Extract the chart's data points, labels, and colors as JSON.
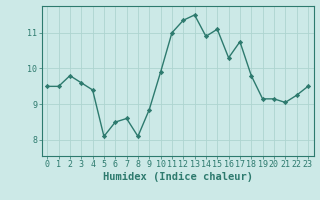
{
  "x": [
    0,
    1,
    2,
    3,
    4,
    5,
    6,
    7,
    8,
    9,
    10,
    11,
    12,
    13,
    14,
    15,
    16,
    17,
    18,
    19,
    20,
    21,
    22,
    23
  ],
  "y": [
    9.5,
    9.5,
    9.8,
    9.6,
    9.4,
    8.1,
    8.5,
    8.6,
    8.1,
    8.85,
    9.9,
    11.0,
    11.35,
    11.5,
    10.9,
    11.1,
    10.3,
    10.75,
    9.8,
    9.15,
    9.15,
    9.05,
    9.25,
    9.5
  ],
  "line_color": "#2d7a6e",
  "marker": "D",
  "markersize": 2.2,
  "linewidth": 1.0,
  "xlabel": "Humidex (Indice chaleur)",
  "xlabel_fontsize": 7.5,
  "yticks": [
    8,
    9,
    10,
    11
  ],
  "xticks": [
    0,
    1,
    2,
    3,
    4,
    5,
    6,
    7,
    8,
    9,
    10,
    11,
    12,
    13,
    14,
    15,
    16,
    17,
    18,
    19,
    20,
    21,
    22,
    23
  ],
  "xlim": [
    -0.5,
    23.5
  ],
  "ylim": [
    7.55,
    11.75
  ],
  "bg_color": "#cce9e7",
  "grid_color": "#aed4d0",
  "tick_color": "#2d7a6e",
  "tick_fontsize": 6.0,
  "xlabel_color": "#2d7a6e"
}
